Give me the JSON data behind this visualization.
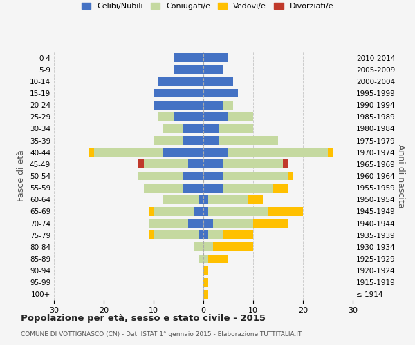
{
  "age_groups": [
    "100+",
    "95-99",
    "90-94",
    "85-89",
    "80-84",
    "75-79",
    "70-74",
    "65-69",
    "60-64",
    "55-59",
    "50-54",
    "45-49",
    "40-44",
    "35-39",
    "30-34",
    "25-29",
    "20-24",
    "15-19",
    "10-14",
    "5-9",
    "0-4"
  ],
  "birth_years": [
    "≤ 1914",
    "1915-1919",
    "1920-1924",
    "1925-1929",
    "1930-1934",
    "1935-1939",
    "1940-1944",
    "1945-1949",
    "1950-1954",
    "1955-1959",
    "1960-1964",
    "1965-1969",
    "1970-1974",
    "1975-1979",
    "1980-1984",
    "1985-1989",
    "1990-1994",
    "1995-1999",
    "2000-2004",
    "2005-2009",
    "2010-2014"
  ],
  "male": {
    "celibi": [
      0,
      0,
      0,
      0,
      0,
      1,
      3,
      2,
      1,
      4,
      4,
      3,
      8,
      4,
      4,
      6,
      10,
      10,
      9,
      6,
      6
    ],
    "coniugati": [
      0,
      0,
      0,
      1,
      2,
      9,
      8,
      8,
      7,
      8,
      9,
      9,
      14,
      6,
      4,
      3,
      0,
      0,
      0,
      0,
      0
    ],
    "vedovi": [
      0,
      0,
      0,
      0,
      0,
      1,
      0,
      1,
      0,
      0,
      0,
      0,
      1,
      0,
      0,
      0,
      0,
      0,
      0,
      0,
      0
    ],
    "divorziati": [
      0,
      0,
      0,
      0,
      0,
      0,
      0,
      0,
      0,
      0,
      0,
      1,
      0,
      0,
      0,
      0,
      0,
      0,
      0,
      0,
      0
    ]
  },
  "female": {
    "nubili": [
      0,
      0,
      0,
      0,
      0,
      1,
      2,
      1,
      1,
      4,
      4,
      4,
      5,
      3,
      3,
      5,
      4,
      7,
      6,
      4,
      5
    ],
    "coniugate": [
      0,
      0,
      0,
      1,
      2,
      3,
      8,
      12,
      8,
      10,
      13,
      12,
      20,
      12,
      7,
      5,
      2,
      0,
      0,
      0,
      0
    ],
    "vedove": [
      1,
      1,
      1,
      4,
      8,
      6,
      7,
      7,
      3,
      3,
      1,
      0,
      1,
      0,
      0,
      0,
      0,
      0,
      0,
      0,
      0
    ],
    "divorziate": [
      0,
      0,
      0,
      0,
      0,
      0,
      0,
      0,
      0,
      0,
      0,
      1,
      0,
      0,
      0,
      0,
      0,
      0,
      0,
      0,
      0
    ]
  },
  "colors": {
    "celibi": "#4472c4",
    "coniugati": "#c5d9a0",
    "vedovi": "#ffc000",
    "divorziati": "#c0392b"
  },
  "xlim": 30,
  "title": "Popolazione per età, sesso e stato civile - 2015",
  "subtitle": "COMUNE DI VOTTIGNASCO (CN) - Dati ISTAT 1° gennaio 2015 - Elaborazione TUTTITALIA.IT",
  "ylabel_left": "Fasce di età",
  "ylabel_right": "Anni di nascita",
  "legend_labels": [
    "Celibi/Nubili",
    "Coniugati/e",
    "Vedovi/e",
    "Divorziati/e"
  ],
  "bg_color": "#f5f5f5",
  "grid_color": "#cccccc"
}
